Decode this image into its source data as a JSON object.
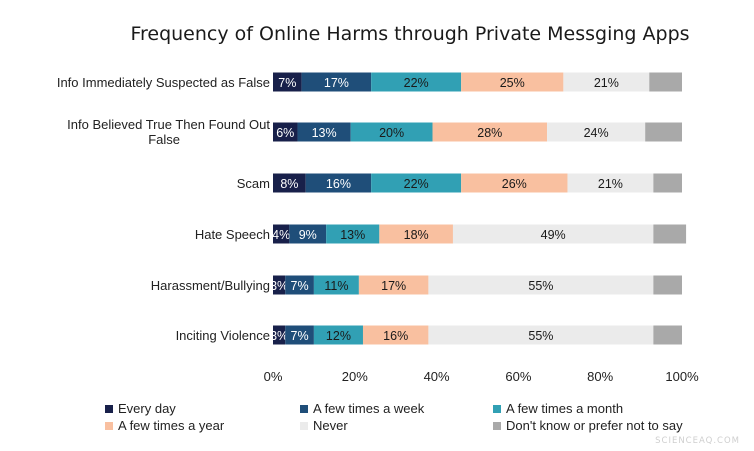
{
  "chart_data": {
    "type": "bar",
    "orientation": "horizontal",
    "stacked": true,
    "title": "Frequency of Online Harms through Private Messging Apps",
    "categories": [
      "Info Immediately Suspected as False",
      "Info Believed True Then Found Out False",
      "Scam",
      "Hate Speech",
      "Harassment/Bullying",
      "Inciting Violence"
    ],
    "series": [
      {
        "name": "Every day",
        "color": "#18204a",
        "values": [
          7,
          6,
          8,
          4,
          3,
          3
        ]
      },
      {
        "name": "A few times a week",
        "color": "#1f4e79",
        "values": [
          17,
          13,
          16,
          9,
          7,
          7
        ]
      },
      {
        "name": "A few times a month",
        "color": "#31a0b4",
        "values": [
          22,
          20,
          22,
          13,
          11,
          12
        ]
      },
      {
        "name": "A few times a year",
        "color": "#f9c0a0",
        "values": [
          25,
          28,
          26,
          18,
          17,
          16
        ]
      },
      {
        "name": "Never",
        "color": "#ebebeb",
        "values": [
          21,
          24,
          21,
          49,
          55,
          55
        ]
      },
      {
        "name": "Don't know or prefer not to say",
        "color": "#a9a9a9",
        "values": [
          8,
          9,
          7,
          8,
          7,
          7
        ]
      }
    ],
    "data_labels": [
      [
        "7%",
        "17%",
        "22%",
        "25%",
        "21%",
        ""
      ],
      [
        "6%",
        "13%",
        "20%",
        "28%",
        "24%",
        ""
      ],
      [
        "8%",
        "16%",
        "22%",
        "26%",
        "21%",
        ""
      ],
      [
        "4%",
        "9%",
        "13%",
        "18%",
        "49%",
        ""
      ],
      [
        "3%",
        "7%",
        "11%",
        "17%",
        "55%",
        ""
      ],
      [
        "3%",
        "7%",
        "12%",
        "16%",
        "55%",
        ""
      ]
    ],
    "label_colors": [
      "#ffffff",
      "#ffffff",
      "#1a1a1a",
      "#1a1a1a",
      "#1a1a1a",
      "#1a1a1a"
    ],
    "xlim": [
      0,
      100
    ],
    "xticks": [
      "0%",
      "20%",
      "40%",
      "60%",
      "80%",
      "100%"
    ],
    "grid": false,
    "legend_position": "bottom"
  },
  "watermark": "SCIENCEAQ.COM"
}
